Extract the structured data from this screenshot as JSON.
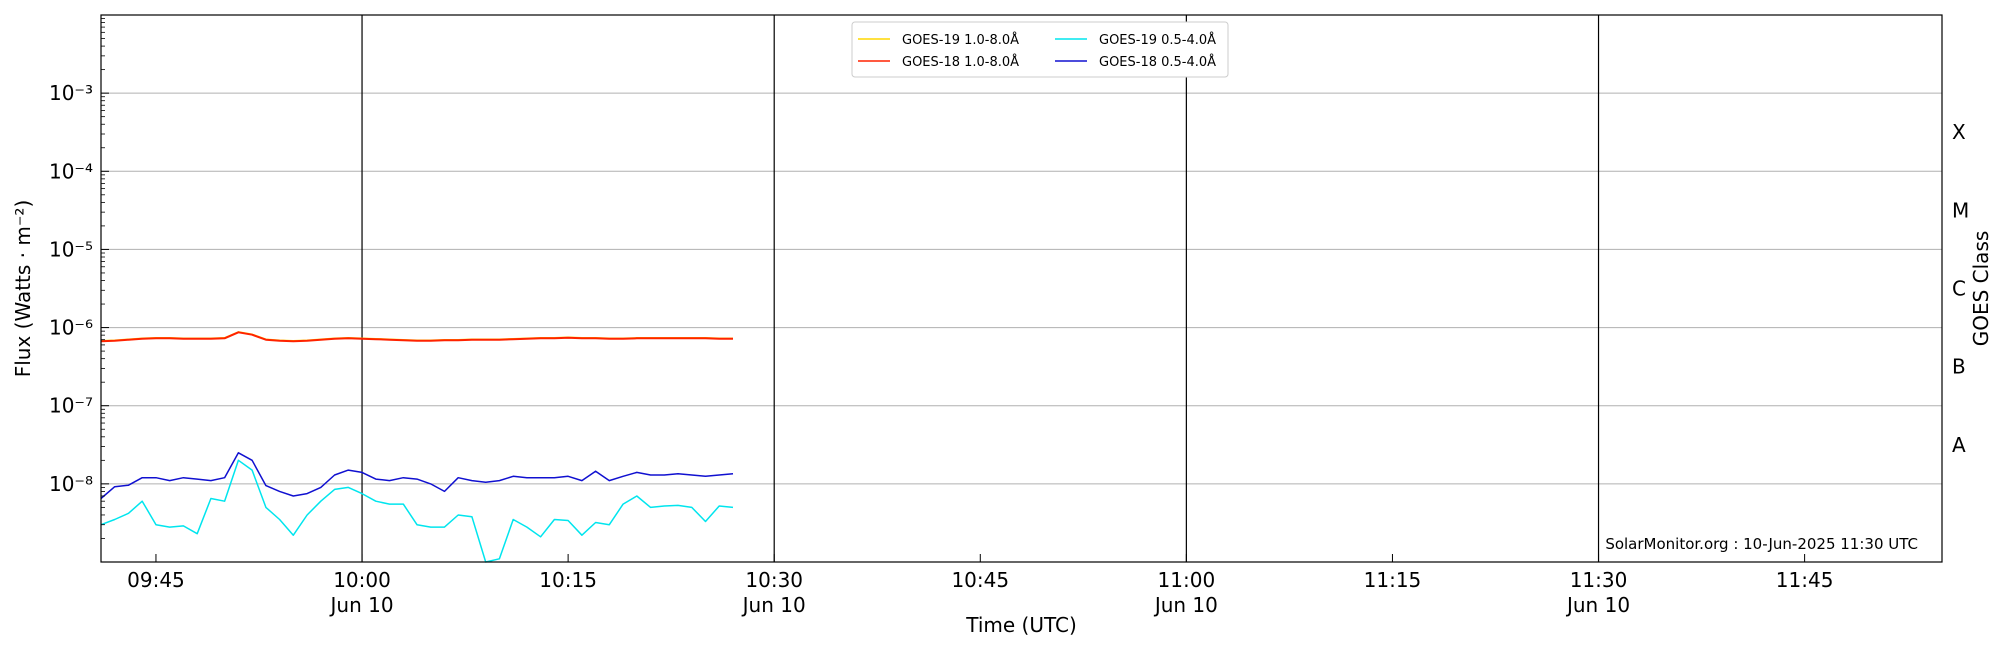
{
  "chart_data": {
    "type": "line",
    "xlabel": "Time (UTC)",
    "ylabel_left": "Flux (Watts · m⁻²)",
    "ylabel_right": "GOES Class",
    "x_range": [
      "09:41",
      "11:55"
    ],
    "y_scale": "log",
    "y_range": [
      1e-09,
      0.01
    ],
    "y_ticks": [
      {
        "value": 1e-08,
        "label": "10⁻⁸"
      },
      {
        "value": 1e-07,
        "label": "10⁻⁷"
      },
      {
        "value": 1e-06,
        "label": "10⁻⁶"
      },
      {
        "value": 1e-05,
        "label": "10⁻⁵"
      },
      {
        "value": 0.0001,
        "label": "10⁻⁴"
      },
      {
        "value": 0.001,
        "label": "10⁻³"
      }
    ],
    "x_ticks": [
      {
        "time": "09:45",
        "label": "09:45",
        "date": ""
      },
      {
        "time": "10:00",
        "label": "10:00",
        "date": "Jun 10"
      },
      {
        "time": "10:15",
        "label": "10:15",
        "date": ""
      },
      {
        "time": "10:30",
        "label": "10:30",
        "date": "Jun 10"
      },
      {
        "time": "10:45",
        "label": "10:45",
        "date": ""
      },
      {
        "time": "11:00",
        "label": "11:00",
        "date": "Jun 10"
      },
      {
        "time": "11:15",
        "label": "11:15",
        "date": ""
      },
      {
        "time": "11:30",
        "label": "11:30",
        "date": "Jun 10"
      },
      {
        "time": "11:45",
        "label": "11:45",
        "date": ""
      }
    ],
    "vertical_lines": [
      "10:00",
      "10:30",
      "11:00",
      "11:30"
    ],
    "goes_classes": [
      {
        "label": "A",
        "value": 3.16e-08
      },
      {
        "label": "B",
        "value": 3.16e-07
      },
      {
        "label": "C",
        "value": 3.16e-06
      },
      {
        "label": "M",
        "value": 3.16e-05
      },
      {
        "label": "X",
        "value": 0.000316
      }
    ],
    "grid": true,
    "legend_position": "top-center",
    "x": [
      "09:41",
      "09:42",
      "09:43",
      "09:44",
      "09:45",
      "09:46",
      "09:47",
      "09:48",
      "09:49",
      "09:50",
      "09:51",
      "09:52",
      "09:53",
      "09:54",
      "09:55",
      "09:56",
      "09:57",
      "09:58",
      "09:59",
      "10:00",
      "10:01",
      "10:02",
      "10:03",
      "10:04",
      "10:05",
      "10:06",
      "10:07",
      "10:08",
      "10:09",
      "10:10",
      "10:11",
      "10:12",
      "10:13",
      "10:14",
      "10:15",
      "10:16",
      "10:17",
      "10:18",
      "10:19",
      "10:20",
      "10:21",
      "10:22",
      "10:23",
      "10:24",
      "10:25",
      "10:26",
      "10:27"
    ],
    "series": [
      {
        "name": "GOES-19 1.0-8.0Å",
        "color": "#ffd700",
        "values": [
          6.8e-07,
          6.9e-07,
          7.1e-07,
          7.3e-07,
          7.4e-07,
          7.4e-07,
          7.3e-07,
          7.3e-07,
          7.3e-07,
          7.4e-07,
          8.8e-07,
          8.2e-07,
          7.1e-07,
          6.9e-07,
          6.8e-07,
          6.9e-07,
          7.1e-07,
          7.3e-07,
          7.4e-07,
          7.3e-07,
          7.2e-07,
          7.1e-07,
          7e-07,
          6.9e-07,
          6.9e-07,
          7e-07,
          7e-07,
          7.1e-07,
          7.1e-07,
          7.1e-07,
          7.2e-07,
          7.3e-07,
          7.4e-07,
          7.4e-07,
          7.5e-07,
          7.4e-07,
          7.4e-07,
          7.3e-07,
          7.3e-07,
          7.4e-07,
          7.4e-07,
          7.4e-07,
          7.4e-07,
          7.4e-07,
          7.4e-07,
          7.3e-07,
          7.3e-07
        ]
      },
      {
        "name": "GOES-18 1.0-8.0Å",
        "color": "#ff2200",
        "values": [
          6.7e-07,
          6.8e-07,
          7e-07,
          7.2e-07,
          7.3e-07,
          7.3e-07,
          7.2e-07,
          7.2e-07,
          7.2e-07,
          7.3e-07,
          8.7e-07,
          8.1e-07,
          7e-07,
          6.8e-07,
          6.7e-07,
          6.8e-07,
          7e-07,
          7.2e-07,
          7.3e-07,
          7.2e-07,
          7.1e-07,
          7e-07,
          6.9e-07,
          6.8e-07,
          6.8e-07,
          6.9e-07,
          6.9e-07,
          7e-07,
          7e-07,
          7e-07,
          7.1e-07,
          7.2e-07,
          7.3e-07,
          7.3e-07,
          7.4e-07,
          7.3e-07,
          7.3e-07,
          7.2e-07,
          7.2e-07,
          7.3e-07,
          7.3e-07,
          7.3e-07,
          7.3e-07,
          7.3e-07,
          7.3e-07,
          7.2e-07,
          7.2e-07
        ]
      },
      {
        "name": "GOES-19 0.5-4.0Å",
        "color": "#00e5ee",
        "values": [
          3e-09,
          3.5e-09,
          4.2e-09,
          6e-09,
          3e-09,
          2.8e-09,
          2.9e-09,
          2.3e-09,
          6.5e-09,
          6e-09,
          2e-08,
          1.5e-08,
          5e-09,
          3.5e-09,
          2.2e-09,
          4e-09,
          6e-09,
          8.5e-09,
          9e-09,
          7.5e-09,
          6e-09,
          5.5e-09,
          5.5e-09,
          3e-09,
          2.8e-09,
          2.8e-09,
          4e-09,
          3.8e-09,
          1e-09,
          1.1e-09,
          3.5e-09,
          2.8e-09,
          2.1e-09,
          3.5e-09,
          3.4e-09,
          2.2e-09,
          3.2e-09,
          3e-09,
          5.5e-09,
          7e-09,
          5e-09,
          5.2e-09,
          5.3e-09,
          5e-09,
          3.3e-09,
          5.2e-09,
          5e-09
        ]
      },
      {
        "name": "GOES-18 0.5-4.0Å",
        "color": "#1010d0",
        "values": [
          6.5e-09,
          9.2e-09,
          9.6e-09,
          1.2e-08,
          1.2e-08,
          1.1e-08,
          1.2e-08,
          1.15e-08,
          1.1e-08,
          1.2e-08,
          2.5e-08,
          2e-08,
          9.5e-09,
          8e-09,
          7e-09,
          7.5e-09,
          9e-09,
          1.3e-08,
          1.5e-08,
          1.4e-08,
          1.15e-08,
          1.1e-08,
          1.2e-08,
          1.15e-08,
          1e-08,
          8e-09,
          1.2e-08,
          1.1e-08,
          1.05e-08,
          1.1e-08,
          1.25e-08,
          1.2e-08,
          1.2e-08,
          1.2e-08,
          1.25e-08,
          1.1e-08,
          1.45e-08,
          1.1e-08,
          1.25e-08,
          1.4e-08,
          1.3e-08,
          1.3e-08,
          1.35e-08,
          1.3e-08,
          1.25e-08,
          1.3e-08,
          1.35e-08
        ]
      }
    ],
    "annotation": "SolarMonitor.org : 10-Jun-2025 11:30 UTC"
  }
}
